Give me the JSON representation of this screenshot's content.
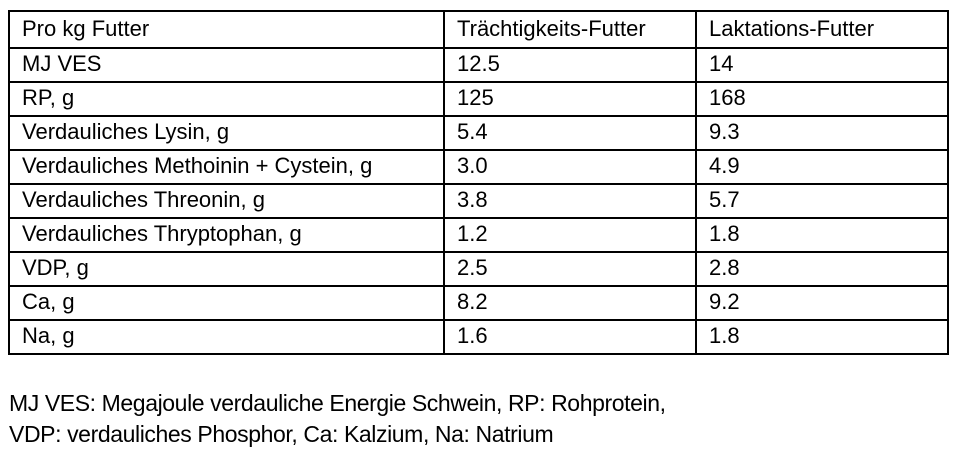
{
  "table": {
    "columns": [
      "Pro kg Futter",
      "Trächtigkeits-Futter",
      "Laktations-Futter"
    ],
    "rows": [
      [
        "MJ VES",
        "12.5",
        "14"
      ],
      [
        "RP, g",
        "125",
        "168"
      ],
      [
        "Verdauliches Lysin, g",
        "5.4",
        "9.3"
      ],
      [
        "Verdauliches Methoinin + Cystein, g",
        "3.0",
        "4.9"
      ],
      [
        "Verdauliches Threonin, g",
        "3.8",
        "5.7"
      ],
      [
        "Verdauliches Thryptophan, g",
        "1.2",
        "1.8"
      ],
      [
        "VDP, g",
        "2.5",
        "2.8"
      ],
      [
        "Ca, g",
        "8.2",
        "9.2"
      ],
      [
        "Na, g",
        "1.6",
        "1.8"
      ]
    ]
  },
  "footnote": {
    "line1": "MJ VES: Megajoule verdauliche Energie Schwein, RP: Rohprotein,",
    "line2": "VDP: verdauliches Phosphor, Ca: Kalzium, Na: Natrium"
  },
  "colors": {
    "text": "#000000",
    "border": "#000000",
    "background": "#ffffff"
  }
}
